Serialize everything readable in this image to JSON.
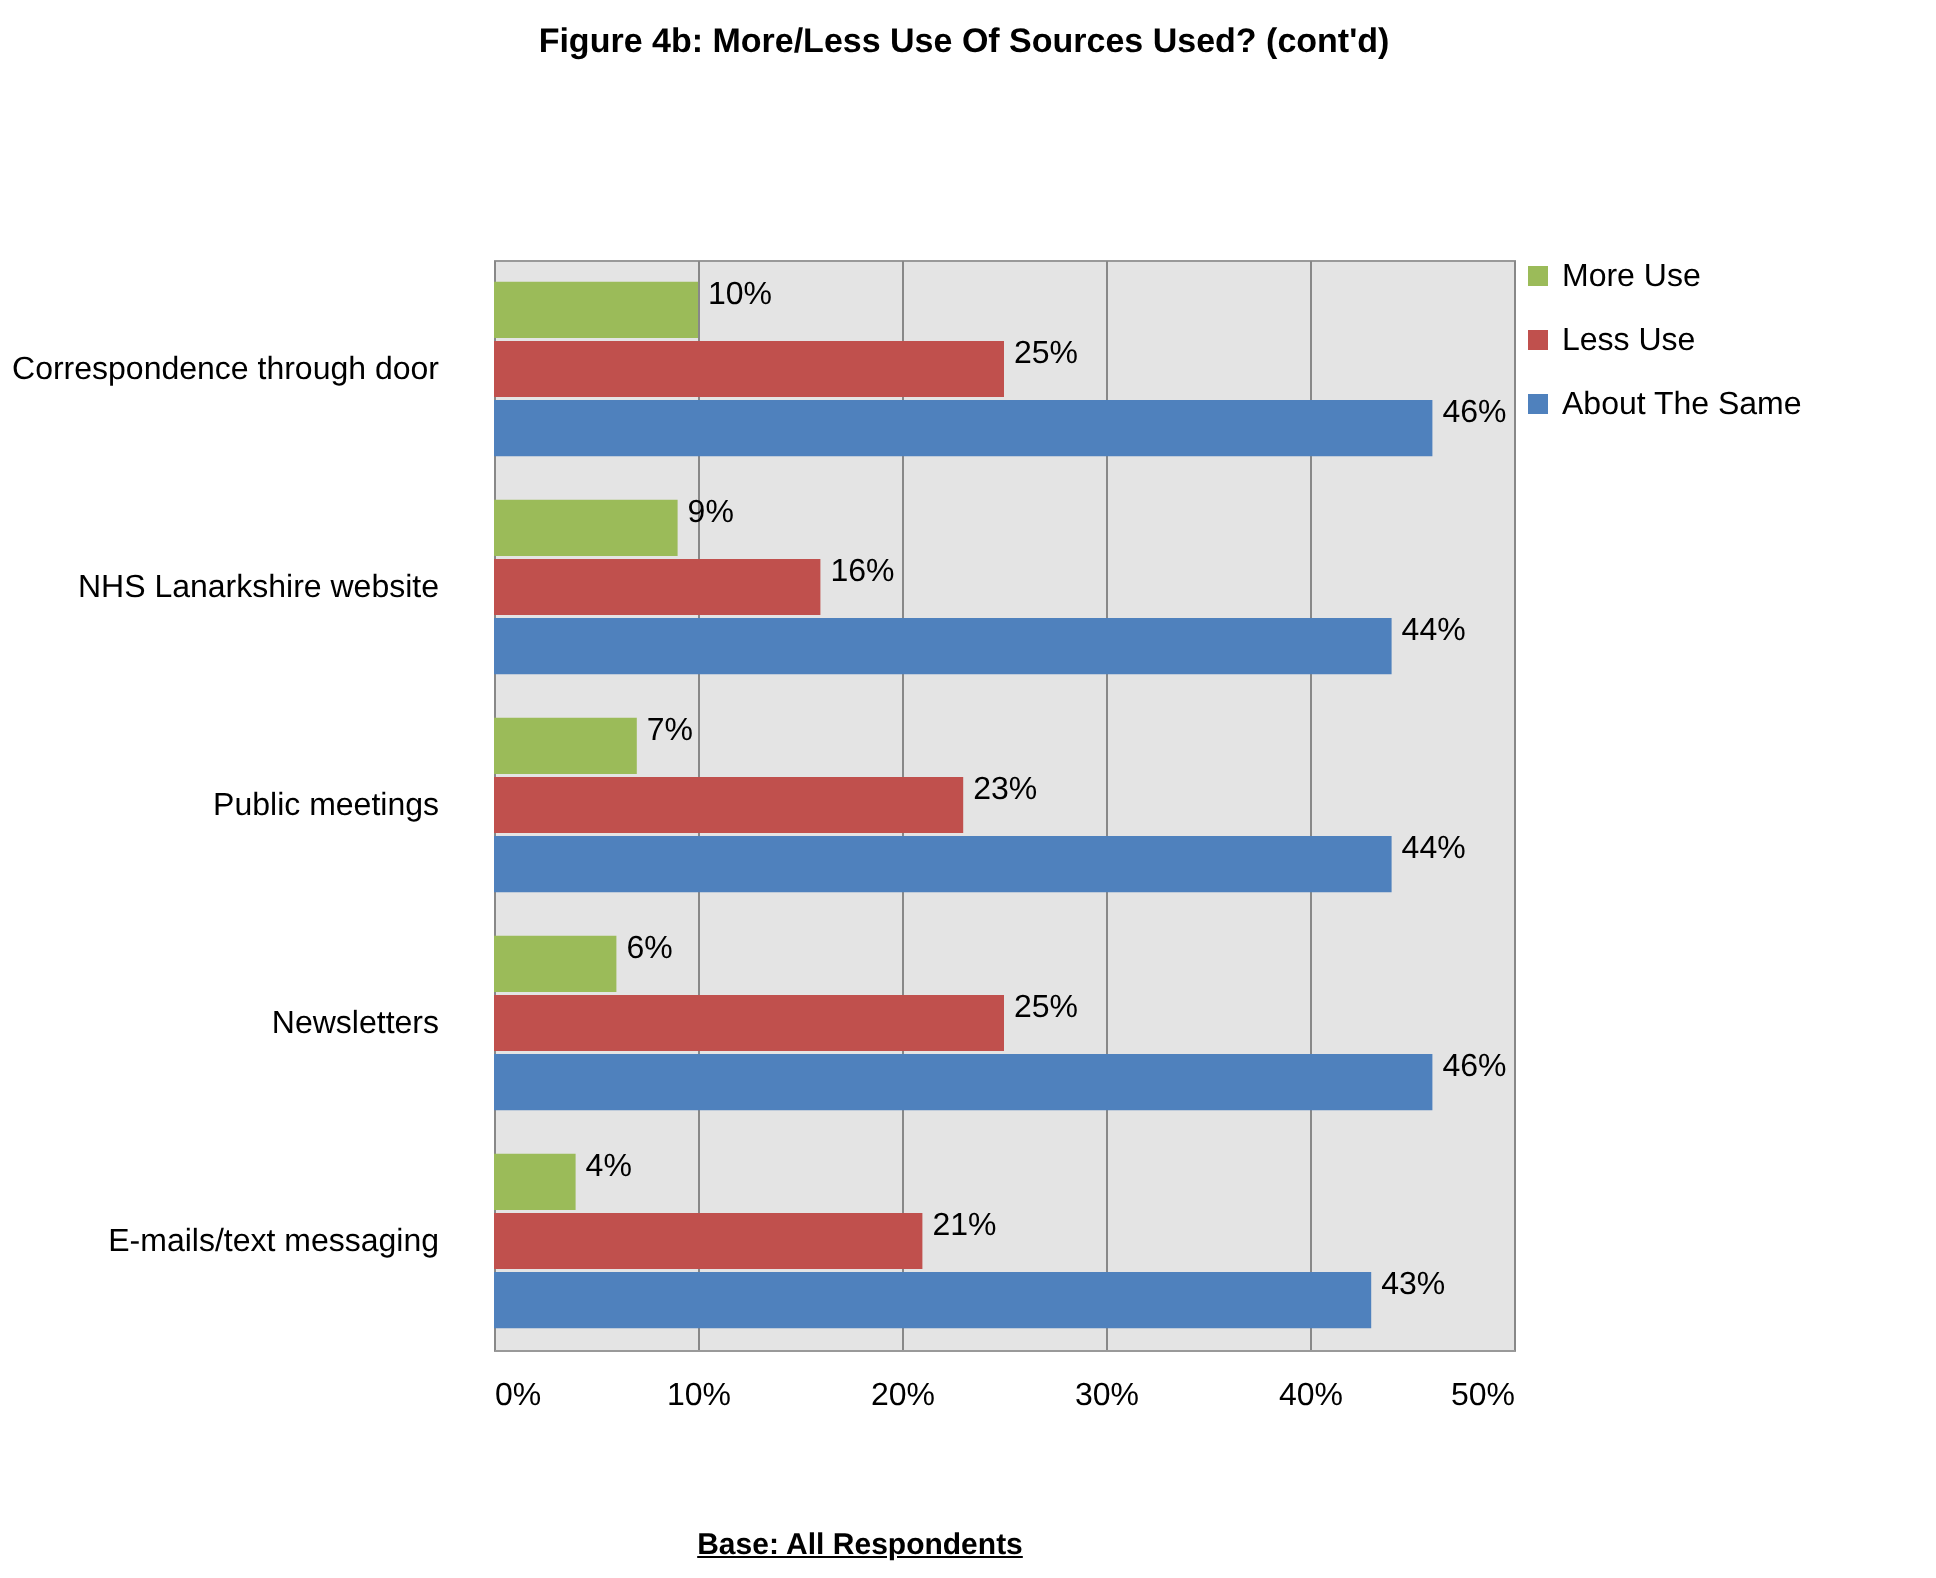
{
  "chart_data": {
    "type": "bar",
    "orientation": "horizontal",
    "title": "Figure 4b:  More/Less Use Of Sources Used? (cont'd)",
    "categories": [
      "Correspondence through door",
      "NHS Lanarkshire website",
      "Public meetings",
      "Newsletters",
      "E-mails/text messaging"
    ],
    "series": [
      {
        "name": "More Use",
        "color": "#9bbb59",
        "values": [
          10,
          9,
          7,
          6,
          4
        ],
        "value_labels": [
          "10%",
          "9%",
          "7%",
          "6%",
          "4%"
        ]
      },
      {
        "name": "Less Use",
        "color": "#c0504d",
        "values": [
          25,
          16,
          23,
          25,
          21
        ],
        "value_labels": [
          "25%",
          "16%",
          "23%",
          "25%",
          "21%"
        ]
      },
      {
        "name": "About The Same",
        "color": "#4f81bd",
        "values": [
          46,
          44,
          44,
          46,
          43
        ],
        "value_labels": [
          "46%",
          "44%",
          "44%",
          "46%",
          "43%"
        ]
      }
    ],
    "xlim": [
      0,
      50
    ],
    "xticks": [
      {
        "value": 0,
        "label": "0%"
      },
      {
        "value": 10,
        "label": "10%"
      },
      {
        "value": 20,
        "label": "20%"
      },
      {
        "value": 30,
        "label": "30%"
      },
      {
        "value": 40,
        "label": "40%"
      },
      {
        "value": 50,
        "label": "50%"
      }
    ],
    "grid": "x",
    "legend": "top right",
    "annotations": [
      "Base:  All Respondents"
    ]
  }
}
